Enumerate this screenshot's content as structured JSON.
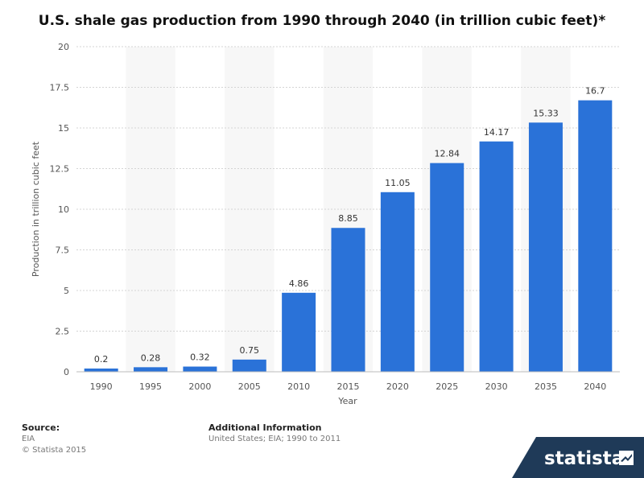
{
  "chart_data": {
    "type": "bar",
    "title": "U.S. shale gas production from 1990 through 2040 (in trillion cubic feet)*",
    "xlabel": "Year",
    "ylabel": "Production in trillion cubic feet",
    "categories": [
      "1990",
      "1995",
      "2000",
      "2005",
      "2010",
      "2015",
      "2020",
      "2025",
      "2030",
      "2035",
      "2040"
    ],
    "values": [
      0.2,
      0.28,
      0.32,
      0.75,
      4.86,
      8.85,
      11.05,
      12.84,
      14.17,
      15.33,
      16.7
    ],
    "value_labels": [
      "0.2",
      "0.28",
      "0.32",
      "0.75",
      "4.86",
      "8.85",
      "11.05",
      "12.84",
      "14.17",
      "15.33",
      "16.7"
    ],
    "ylim": [
      0,
      20
    ],
    "yticks": [
      "0",
      "2.5",
      "5",
      "7.5",
      "10",
      "12.5",
      "15",
      "17.5",
      "20"
    ],
    "grid": true,
    "bar_color": "#2a72d8"
  },
  "footer": {
    "source_heading": "Source:",
    "source_name": "EIA",
    "copyright": "© Statista 2015",
    "additional_heading": "Additional Information",
    "additional_text": "United States; EIA; 1990 to 2011"
  },
  "brand": {
    "name": "statista",
    "color": "#1f3a58"
  }
}
